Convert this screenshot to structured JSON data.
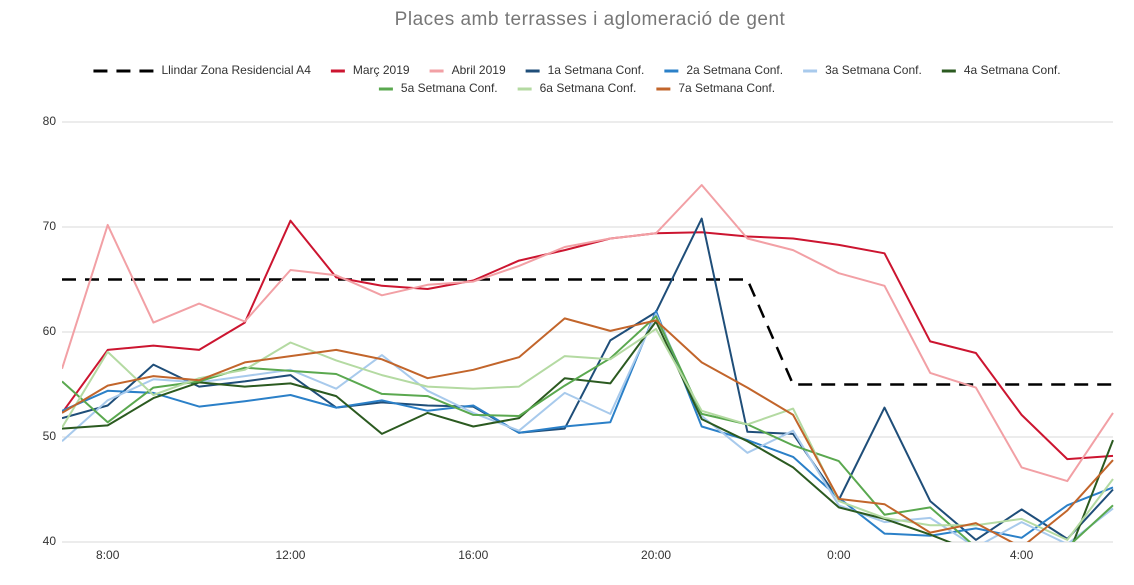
{
  "chart_data": {
    "type": "line",
    "title": "Places amb terrasses i aglomeració de gent",
    "x": [
      7,
      8,
      9,
      10,
      11,
      12,
      13,
      14,
      15,
      16,
      17,
      18,
      19,
      20,
      21,
      22,
      23,
      24,
      25,
      26,
      27,
      28,
      29,
      30
    ],
    "xlim": [
      7,
      30
    ],
    "xticks": [
      {
        "value": 8,
        "label": "8:00"
      },
      {
        "value": 12,
        "label": "12:00"
      },
      {
        "value": 16,
        "label": "16:00"
      },
      {
        "value": 20,
        "label": "20:00"
      },
      {
        "value": 24,
        "label": "0:00"
      },
      {
        "value": 28,
        "label": "4:00"
      }
    ],
    "ylim": [
      40,
      80
    ],
    "yticks": [
      40,
      50,
      60,
      70,
      80
    ],
    "grid": true,
    "legend": "top",
    "series": [
      {
        "name": "Llindar Zona Residencial A4",
        "color": "#000000",
        "dashed": true,
        "values": [
          65,
          65,
          65,
          65,
          65,
          65,
          65,
          65,
          65,
          65,
          65,
          65,
          65,
          65,
          65,
          65,
          55,
          55,
          55,
          55,
          55,
          55,
          55,
          55
        ]
      },
      {
        "name": "Març 2019",
        "color": "#cc1530",
        "values": [
          52.3,
          58.3,
          58.7,
          58.3,
          60.9,
          70.6,
          65.2,
          64.4,
          64.1,
          64.9,
          66.8,
          67.8,
          68.9,
          69.4,
          69.5,
          69.1,
          68.9,
          68.3,
          67.5,
          59.1,
          58.0,
          52.1,
          47.9,
          48.2
        ]
      },
      {
        "name": "Abril 2019",
        "color": "#f2a0a5",
        "values": [
          56.5,
          70.2,
          60.9,
          62.7,
          61.0,
          65.9,
          65.4,
          63.5,
          64.5,
          64.8,
          66.3,
          68.1,
          68.9,
          69.4,
          74.0,
          68.9,
          67.8,
          65.6,
          64.4,
          56.1,
          54.7,
          47.1,
          45.8,
          52.3
        ]
      },
      {
        "name": "1a Setmana Conf.",
        "color": "#1f4e79",
        "values": [
          51.8,
          53.0,
          56.9,
          54.8,
          55.3,
          55.9,
          52.8,
          53.3,
          53.0,
          52.9,
          50.4,
          50.8,
          59.2,
          61.9,
          70.8,
          50.5,
          50.3,
          44.0,
          52.8,
          43.9,
          40.2,
          43.1,
          40.3,
          45.0
        ]
      },
      {
        "name": "2a Setmana Conf.",
        "color": "#2b80c8",
        "values": [
          52.5,
          54.4,
          54.2,
          52.9,
          53.4,
          54.0,
          52.8,
          53.5,
          52.5,
          53.0,
          50.4,
          51.0,
          51.4,
          62.0,
          51.0,
          49.7,
          48.1,
          44.2,
          40.8,
          40.6,
          41.3,
          40.4,
          43.5,
          45.2
        ]
      },
      {
        "name": "3a Setmana Conf.",
        "color": "#a8caec",
        "values": [
          49.6,
          53.5,
          55.5,
          55.2,
          55.8,
          56.4,
          54.6,
          57.8,
          54.4,
          52.3,
          50.6,
          54.2,
          52.2,
          61.7,
          52.0,
          48.5,
          50.6,
          43.5,
          41.9,
          42.3,
          39.5,
          41.9,
          39.8,
          43.2
        ]
      },
      {
        "name": "4a Setmana Conf.",
        "color": "#2b5a20",
        "values": [
          50.8,
          51.1,
          53.7,
          55.2,
          54.8,
          55.1,
          53.9,
          50.3,
          52.3,
          51.0,
          51.8,
          55.6,
          55.1,
          61.0,
          51.7,
          49.6,
          47.1,
          43.3,
          42.2,
          40.7,
          39.0,
          38.5,
          38.5,
          49.7
        ]
      },
      {
        "name": "5a Setmana Conf.",
        "color": "#5aa84f",
        "values": [
          55.3,
          51.4,
          54.7,
          55.3,
          56.6,
          56.3,
          56.0,
          54.1,
          53.9,
          52.1,
          52.0,
          54.9,
          57.5,
          61.5,
          52.2,
          51.2,
          49.2,
          47.7,
          42.6,
          43.3,
          39.5,
          39.0,
          39.5,
          43.5
        ]
      },
      {
        "name": "6a Setmana Conf.",
        "color": "#b4daa2",
        "values": [
          50.9,
          58.1,
          54.0,
          55.6,
          56.4,
          59.0,
          57.3,
          55.9,
          54.8,
          54.6,
          54.8,
          57.7,
          57.4,
          60.3,
          52.5,
          51.2,
          52.7,
          43.9,
          42.3,
          41.6,
          41.6,
          42.2,
          40.2,
          46.0
        ]
      },
      {
        "name": "7a Setmana Conf.",
        "color": "#c2652b",
        "values": [
          52.3,
          54.9,
          55.8,
          55.4,
          57.1,
          57.7,
          58.3,
          57.4,
          55.6,
          56.4,
          57.6,
          61.3,
          60.1,
          61.1,
          57.1,
          54.7,
          52.1,
          44.1,
          43.6,
          40.9,
          41.8,
          39.5,
          43.0,
          47.8
        ]
      }
    ]
  }
}
